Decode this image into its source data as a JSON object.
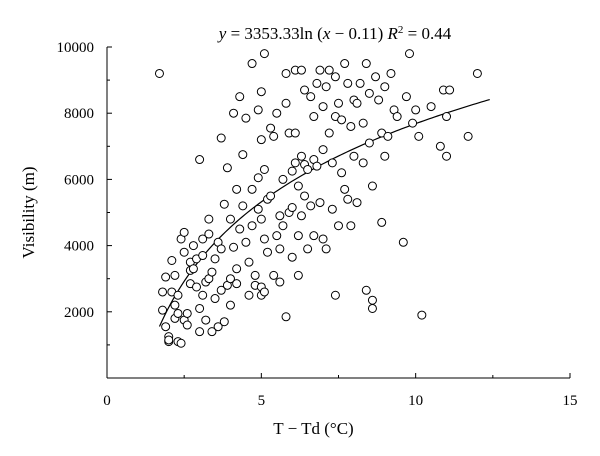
{
  "chart_data": {
    "type": "scatter",
    "title": "y = 3353.33ln (x − 0.11) R² = 0.44",
    "title_parts": {
      "lhs": "y",
      "eq": " = 3353.33ln (",
      "x": "x",
      "rest": " − 0.11) ",
      "r": "R",
      "sup": "2",
      "r2val": " = 0.44"
    },
    "xlabel": "T − Td (°C)",
    "ylabel": "Visibility (m)",
    "xlim": [
      0,
      15
    ],
    "ylim": [
      0,
      10000
    ],
    "xticks": [
      0,
      5,
      10,
      15
    ],
    "yticks": [
      2000,
      4000,
      6000,
      8000,
      10000
    ],
    "trend": {
      "a": 3353.33,
      "b": 0.11,
      "x_start": 1.7,
      "x_end": 12.4
    },
    "points": [
      [
        1.7,
        9200
      ],
      [
        1.8,
        2050
      ],
      [
        1.8,
        2600
      ],
      [
        1.9,
        3050
      ],
      [
        1.9,
        1550
      ],
      [
        2.0,
        1250
      ],
      [
        2.0,
        1100
      ],
      [
        2.0,
        1150
      ],
      [
        2.1,
        2600
      ],
      [
        2.1,
        3550
      ],
      [
        2.2,
        3100
      ],
      [
        2.2,
        2200
      ],
      [
        2.2,
        1800
      ],
      [
        2.3,
        1100
      ],
      [
        2.3,
        1950
      ],
      [
        2.3,
        2500
      ],
      [
        2.4,
        1050
      ],
      [
        2.4,
        4200
      ],
      [
        2.5,
        3800
      ],
      [
        2.5,
        4400
      ],
      [
        2.5,
        1750
      ],
      [
        2.6,
        1600
      ],
      [
        2.6,
        1950
      ],
      [
        2.7,
        3250
      ],
      [
        2.7,
        2850
      ],
      [
        2.7,
        3500
      ],
      [
        2.8,
        4000
      ],
      [
        2.8,
        3300
      ],
      [
        2.9,
        2750
      ],
      [
        2.9,
        3600
      ],
      [
        3.0,
        6600
      ],
      [
        3.0,
        1400
      ],
      [
        3.0,
        2100
      ],
      [
        3.1,
        2500
      ],
      [
        3.1,
        4200
      ],
      [
        3.1,
        3700
      ],
      [
        3.2,
        1750
      ],
      [
        3.2,
        2900
      ],
      [
        3.3,
        4350
      ],
      [
        3.3,
        4800
      ],
      [
        3.3,
        3000
      ],
      [
        3.4,
        1400
      ],
      [
        3.4,
        3200
      ],
      [
        3.5,
        3600
      ],
      [
        3.5,
        2400
      ],
      [
        3.6,
        4100
      ],
      [
        3.6,
        1550
      ],
      [
        3.7,
        2650
      ],
      [
        3.7,
        3900
      ],
      [
        3.7,
        7250
      ],
      [
        3.8,
        5250
      ],
      [
        3.8,
        1700
      ],
      [
        3.9,
        2800
      ],
      [
        3.9,
        6350
      ],
      [
        4.0,
        2200
      ],
      [
        4.0,
        4800
      ],
      [
        4.0,
        3000
      ],
      [
        4.1,
        8000
      ],
      [
        4.1,
        3950
      ],
      [
        4.2,
        2850
      ],
      [
        4.2,
        5700
      ],
      [
        4.2,
        3300
      ],
      [
        4.3,
        8500
      ],
      [
        4.3,
        4500
      ],
      [
        4.4,
        6750
      ],
      [
        4.4,
        5200
      ],
      [
        4.5,
        7850
      ],
      [
        4.5,
        4100
      ],
      [
        4.6,
        2500
      ],
      [
        4.6,
        3500
      ],
      [
        4.7,
        9500
      ],
      [
        4.7,
        5700
      ],
      [
        4.7,
        4600
      ],
      [
        4.8,
        3100
      ],
      [
        4.8,
        2800
      ],
      [
        4.9,
        8100
      ],
      [
        4.9,
        6050
      ],
      [
        4.9,
        5100
      ],
      [
        5.0,
        8650
      ],
      [
        5.0,
        7200
      ],
      [
        5.0,
        4800
      ],
      [
        5.0,
        2500
      ],
      [
        5.0,
        2750
      ],
      [
        5.1,
        9800
      ],
      [
        5.1,
        6300
      ],
      [
        5.1,
        4200
      ],
      [
        5.1,
        2600
      ],
      [
        5.2,
        3800
      ],
      [
        5.2,
        5400
      ],
      [
        5.3,
        7550
      ],
      [
        5.3,
        5500
      ],
      [
        5.4,
        7300
      ],
      [
        5.4,
        3100
      ],
      [
        5.5,
        8000
      ],
      [
        5.5,
        4300
      ],
      [
        5.6,
        3900
      ],
      [
        5.6,
        4900
      ],
      [
        5.6,
        2900
      ],
      [
        5.7,
        6000
      ],
      [
        5.7,
        4600
      ],
      [
        5.8,
        9200
      ],
      [
        5.8,
        8300
      ],
      [
        5.8,
        1850
      ],
      [
        5.9,
        7400
      ],
      [
        5.9,
        5000
      ],
      [
        6.0,
        6250
      ],
      [
        6.0,
        5150
      ],
      [
        6.0,
        3650
      ],
      [
        6.1,
        9300
      ],
      [
        6.1,
        7400
      ],
      [
        6.1,
        6500
      ],
      [
        6.2,
        5800
      ],
      [
        6.2,
        4300
      ],
      [
        6.2,
        3100
      ],
      [
        6.3,
        9300
      ],
      [
        6.3,
        6700
      ],
      [
        6.3,
        4900
      ],
      [
        6.4,
        8700
      ],
      [
        6.4,
        6450
      ],
      [
        6.4,
        5500
      ],
      [
        6.5,
        6300
      ],
      [
        6.5,
        3900
      ],
      [
        6.6,
        8500
      ],
      [
        6.6,
        5200
      ],
      [
        6.7,
        7900
      ],
      [
        6.7,
        6600
      ],
      [
        6.7,
        4300
      ],
      [
        6.8,
        8900
      ],
      [
        6.8,
        6400
      ],
      [
        6.9,
        9300
      ],
      [
        6.9,
        5300
      ],
      [
        7.0,
        8200
      ],
      [
        7.0,
        6900
      ],
      [
        7.0,
        4200
      ],
      [
        7.1,
        8800
      ],
      [
        7.1,
        3900
      ],
      [
        7.2,
        9300
      ],
      [
        7.2,
        7400
      ],
      [
        7.3,
        6500
      ],
      [
        7.3,
        5100
      ],
      [
        7.4,
        9100
      ],
      [
        7.4,
        7900
      ],
      [
        7.4,
        2500
      ],
      [
        7.5,
        8300
      ],
      [
        7.5,
        4600
      ],
      [
        7.6,
        7800
      ],
      [
        7.6,
        6200
      ],
      [
        7.7,
        9500
      ],
      [
        7.7,
        5700
      ],
      [
        7.8,
        8900
      ],
      [
        7.8,
        5400
      ],
      [
        7.9,
        7600
      ],
      [
        7.9,
        4600
      ],
      [
        8.0,
        8400
      ],
      [
        8.0,
        6700
      ],
      [
        8.1,
        8300
      ],
      [
        8.1,
        5300
      ],
      [
        8.2,
        8900
      ],
      [
        8.3,
        7700
      ],
      [
        8.3,
        6500
      ],
      [
        8.4,
        9500
      ],
      [
        8.4,
        2650
      ],
      [
        8.5,
        8600
      ],
      [
        8.5,
        7100
      ],
      [
        8.6,
        5800
      ],
      [
        8.6,
        2350
      ],
      [
        8.6,
        2100
      ],
      [
        8.7,
        9100
      ],
      [
        8.8,
        8400
      ],
      [
        8.9,
        7400
      ],
      [
        8.9,
        4700
      ],
      [
        9.0,
        8800
      ],
      [
        9.0,
        6700
      ],
      [
        9.1,
        7300
      ],
      [
        9.2,
        9200
      ],
      [
        9.3,
        8100
      ],
      [
        9.4,
        7900
      ],
      [
        9.6,
        4100
      ],
      [
        9.7,
        8500
      ],
      [
        9.8,
        9800
      ],
      [
        9.9,
        7700
      ],
      [
        10.0,
        8100
      ],
      [
        10.1,
        7300
      ],
      [
        10.2,
        1900
      ],
      [
        10.5,
        8200
      ],
      [
        10.8,
        7000
      ],
      [
        10.9,
        8700
      ],
      [
        11.0,
        6700
      ],
      [
        11.0,
        7900
      ],
      [
        11.1,
        8700
      ],
      [
        11.7,
        7300
      ],
      [
        12.0,
        9200
      ]
    ]
  }
}
